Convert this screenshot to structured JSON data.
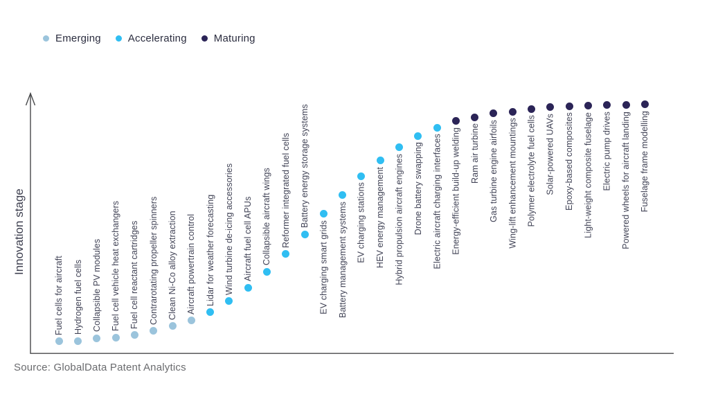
{
  "legend": {
    "items": [
      {
        "label": "Emerging",
        "color": "#9bc4dc"
      },
      {
        "label": "Accelerating",
        "color": "#30bef2"
      },
      {
        "label": "Maturing",
        "color": "#2b2457"
      }
    ]
  },
  "axis": {
    "y_label": "Innovation stage"
  },
  "source": {
    "text": "Source: GlobalData Patent Analytics"
  },
  "chart_data": {
    "type": "scatter",
    "title": "",
    "xlabel": "",
    "ylabel": "Innovation stage",
    "legend_position": "top-left",
    "grid": false,
    "y_axis_note": "Y axis is unlabeled; values are relative innovation-stage estimates on a 0-100 scale read from dot heights",
    "stages": [
      "Emerging",
      "Accelerating",
      "Maturing"
    ],
    "points": [
      {
        "label": "Fuel cells for aircraft",
        "stage": "Emerging",
        "value": 4.7
      },
      {
        "label": "Hydrogen fuel cells",
        "stage": "Emerging",
        "value": 4.9
      },
      {
        "label": "Collapsible PV modules",
        "stage": "Emerging",
        "value": 5.9
      },
      {
        "label": "Fuel cell vehicle heat exchangers",
        "stage": "Emerging",
        "value": 6.3
      },
      {
        "label": "Fuel cell reactant cartridges",
        "stage": "Emerging",
        "value": 7.2
      },
      {
        "label": "Contrarotating propeller spinners",
        "stage": "Emerging",
        "value": 8.8
      },
      {
        "label": "Clean Ni-Co alloy extraction",
        "stage": "Emerging",
        "value": 10.8
      },
      {
        "label": "Aircraft powertrain control",
        "stage": "Emerging",
        "value": 13.0
      },
      {
        "label": "Lidar for weather forecasting",
        "stage": "Accelerating",
        "value": 16.2
      },
      {
        "label": "Wind turbine de-icing accessories",
        "stage": "Accelerating",
        "value": 20.6
      },
      {
        "label": "Aircraft fuel cell APUs",
        "stage": "Accelerating",
        "value": 26.0
      },
      {
        "label": "Collapsible aircraft wings",
        "stage": "Accelerating",
        "value": 32.2
      },
      {
        "label": "Reformer integrated fuel cells",
        "stage": "Accelerating",
        "value": 39.3
      },
      {
        "label": "Battery energy storage systems",
        "stage": "Accelerating",
        "value": 47.1
      },
      {
        "label": "EV charging smart grids",
        "stage": "Accelerating",
        "value": 55.1
      },
      {
        "label": "Battery management systems",
        "stage": "Accelerating",
        "value": 62.6
      },
      {
        "label": "EV charging stations",
        "stage": "Accelerating",
        "value": 70.1
      },
      {
        "label": "HEV energy management",
        "stage": "Accelerating",
        "value": 76.2
      },
      {
        "label": "Hybrid propulsion aircraft engines",
        "stage": "Accelerating",
        "value": 81.4
      },
      {
        "label": "Drone battery swapping",
        "stage": "Accelerating",
        "value": 86.0
      },
      {
        "label": "Electric aircraft charging interfaces",
        "stage": "Accelerating",
        "value": 89.3
      },
      {
        "label": "Energy-efficient build-up welding",
        "stage": "Maturing",
        "value": 91.8
      },
      {
        "label": "Ram air turbine",
        "stage": "Maturing",
        "value": 93.4
      },
      {
        "label": "Gas turbine engine airfoils",
        "stage": "Maturing",
        "value": 94.9
      },
      {
        "label": "Wing-lift enhancement mountings",
        "stage": "Maturing",
        "value": 95.6
      },
      {
        "label": "Polymer electrolyte fuel cells",
        "stage": "Maturing",
        "value": 96.7
      },
      {
        "label": "Solar-powered UAVs",
        "stage": "Maturing",
        "value": 97.3
      },
      {
        "label": "Epoxy-based composites",
        "stage": "Maturing",
        "value": 97.7
      },
      {
        "label": "Light-weight composite fuselage",
        "stage": "Maturing",
        "value": 97.9
      },
      {
        "label": "Electric pump drives",
        "stage": "Maturing",
        "value": 98.1
      },
      {
        "label": "Powered wheels for aircraft landing",
        "stage": "Maturing",
        "value": 98.1
      },
      {
        "label": "Fuselage frame modelling",
        "stage": "Maturing",
        "value": 98.4
      }
    ]
  }
}
